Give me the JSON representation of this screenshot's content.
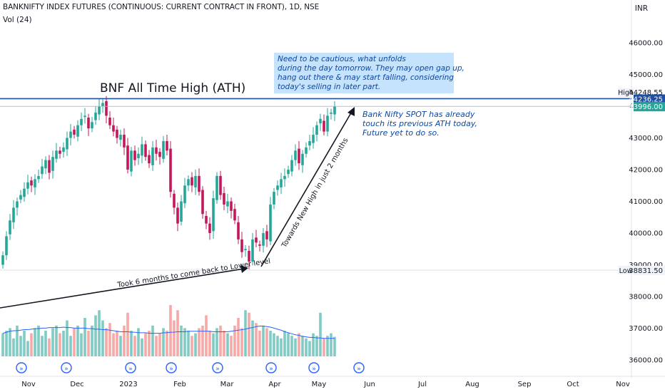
{
  "header": {
    "symbol_line": "BANKNIFTY INDEX FUTURES (CONTINUOUS: CURRENT CONTRACT IN FRONT), 1D, NSE",
    "volume_label": "Vol (24)",
    "currency": "INR"
  },
  "colors": {
    "up": "#26a69a",
    "down": "#c2185b",
    "vol_up": "#80cbc4",
    "vol_down": "#f7a9a8",
    "vol_ma": "#2962ff",
    "ath_line": "#1e4fa3",
    "annotation_text": "#0d47a1",
    "annotation_box": "#bbdefb"
  },
  "chart_data": {
    "type": "candlestick",
    "price_axis": {
      "ticks": [
        "46000.00",
        "45000.00",
        "44000.00",
        "43000.00",
        "42000.00",
        "41000.00",
        "40000.00",
        "39000.00",
        "38000.00",
        "37000.00",
        "36000.00"
      ],
      "ylim": [
        35400,
        46900
      ]
    },
    "time_axis": {
      "ticks": [
        "Nov",
        "Dec",
        "2023",
        "Feb",
        "Mar",
        "Apr",
        "May",
        "Jun",
        "Jul",
        "Aug",
        "Sep",
        "Oct",
        "Nov"
      ]
    },
    "markers": {
      "high": {
        "label": "High",
        "value": "44248.55"
      },
      "ath": {
        "value": "44236.25"
      },
      "last": {
        "value": "43996.00"
      },
      "low": {
        "label": "Low",
        "value": "38831.50"
      }
    },
    "series_close": [
      39300,
      39900,
      40400,
      40800,
      41000,
      41200,
      41400,
      41600,
      41500,
      41700,
      41800,
      42100,
      42300,
      41900,
      42400,
      42600,
      42500,
      42700,
      43000,
      43200,
      43100,
      43400,
      43600,
      43700,
      43300,
      43500,
      43800,
      44000,
      44100,
      43700,
      43400,
      43200,
      43000,
      43100,
      42700,
      42000,
      42600,
      42300,
      42500,
      42800,
      42400,
      42200,
      42700,
      42500,
      42400,
      42900,
      42600,
      41300,
      40800,
      40300,
      41000,
      41500,
      41700,
      41500,
      41800,
      41300,
      40600,
      40300,
      40000,
      41100,
      41800,
      41200,
      40900,
      41000,
      40700,
      40400,
      39800,
      39400,
      39500,
      39100,
      39800,
      39700,
      39600,
      40000,
      39800,
      40900,
      41300,
      41500,
      41700,
      41800,
      42000,
      42300,
      42600,
      42200,
      42500,
      42700,
      42900,
      43100,
      43400,
      43600,
      43200,
      43700,
      43800,
      44000
    ],
    "vol_ma": [
      0.45,
      0.47,
      0.49,
      0.5,
      0.5,
      0.51,
      0.52,
      0.52,
      0.53,
      0.54,
      0.54,
      0.55,
      0.55,
      0.56,
      0.56,
      0.56,
      0.56,
      0.57,
      0.56,
      0.56,
      0.55,
      0.55,
      0.55,
      0.55,
      0.54,
      0.54,
      0.53,
      0.53,
      0.52,
      0.52,
      0.51,
      0.5,
      0.49,
      0.48,
      0.48,
      0.48,
      0.47,
      0.47,
      0.46,
      0.46,
      0.46,
      0.45,
      0.45,
      0.45,
      0.45,
      0.46,
      0.46,
      0.47,
      0.47,
      0.48,
      0.48,
      0.48,
      0.49,
      0.49,
      0.49,
      0.49,
      0.49,
      0.49,
      0.49,
      0.48,
      0.48,
      0.48,
      0.48,
      0.48,
      0.49,
      0.5,
      0.51,
      0.52,
      0.53,
      0.55,
      0.56,
      0.58,
      0.59,
      0.59,
      0.58,
      0.57,
      0.55,
      0.53,
      0.51,
      0.48,
      0.46,
      0.44,
      0.42,
      0.41,
      0.39,
      0.38,
      0.37,
      0.37,
      0.36,
      0.36,
      0.35,
      0.35,
      0.35,
      0.35
    ],
    "volumes": [
      0.45,
      0.5,
      0.55,
      0.35,
      0.6,
      0.4,
      0.5,
      0.3,
      0.45,
      0.55,
      0.6,
      0.4,
      0.5,
      0.35,
      0.55,
      0.6,
      0.45,
      0.5,
      0.7,
      0.4,
      0.55,
      0.6,
      0.45,
      0.75,
      0.5,
      0.6,
      0.8,
      0.9,
      0.7,
      0.55,
      0.65,
      0.45,
      0.5,
      0.4,
      0.6,
      0.85,
      0.5,
      0.4,
      0.55,
      0.35,
      0.45,
      0.5,
      0.6,
      0.4,
      0.45,
      0.55,
      0.5,
      1.0,
      0.7,
      0.9,
      0.6,
      0.55,
      0.5,
      0.4,
      0.45,
      0.55,
      0.6,
      0.8,
      0.5,
      0.45,
      0.55,
      0.6,
      0.5,
      0.45,
      0.4,
      0.6,
      0.75,
      0.55,
      0.9,
      0.85,
      0.7,
      0.65,
      0.5,
      0.6,
      0.55,
      0.5,
      0.45,
      0.4,
      0.35,
      0.5,
      0.45,
      0.4,
      0.35,
      0.45,
      0.4,
      0.35,
      0.3,
      0.45,
      0.4,
      0.85,
      0.35,
      0.4,
      0.45,
      0.38
    ],
    "annotations": {
      "ath_title": "BNF All Time High (ATH)",
      "cautious": [
        "Need to be cautious, what unfolds",
        "during the day tomorrow. They may open gap up,",
        "hang out there & may start falling, considering",
        "today's selling in later part."
      ],
      "spot_note": [
        "Bank Nifty SPOT has already",
        "touch its previous ATH today,",
        "Future yet to do so."
      ],
      "six_months": "Took 6 months to come back to Lower level",
      "two_months": "Towards New High in just 2 months"
    }
  }
}
